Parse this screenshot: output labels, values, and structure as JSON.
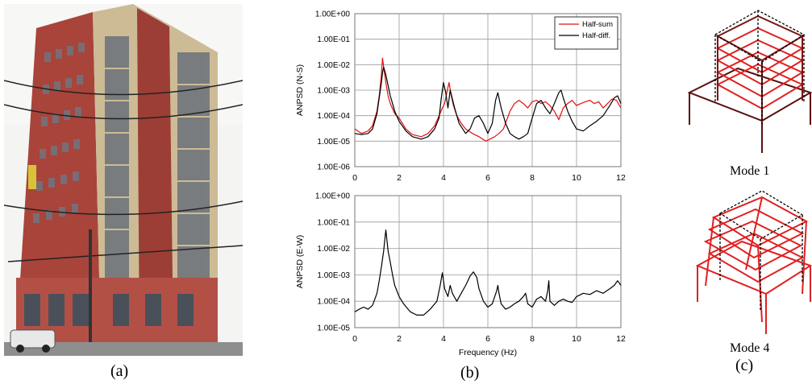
{
  "panels": {
    "a": {
      "label": "(a)"
    },
    "b": {
      "label": "(b)"
    },
    "c": {
      "label": "(c)",
      "modes": [
        "Mode 1",
        "Mode 4"
      ]
    }
  },
  "colors": {
    "half_sum": "#e01010",
    "half_diff": "#000000",
    "building_brick": "#a8443a",
    "building_stone": "#cdbb96",
    "mode_red": "#e02020",
    "mode_dark": "#5a1010"
  },
  "chart_data": [
    {
      "type": "line",
      "title": "",
      "xlabel": "",
      "ylabel": "ANPSD (N-S)",
      "xlim": [
        0,
        12
      ],
      "ylim": [
        1e-06,
        1
      ],
      "yscale": "log",
      "grid": true,
      "legend": "top-right",
      "x_ticks": [
        "0",
        "2",
        "4",
        "6",
        "8",
        "10",
        "12"
      ],
      "y_ticks": [
        "1.00E-06",
        "1.00E-05",
        "1.00E-04",
        "1.00E-03",
        "1.00E-02",
        "1.00E-01",
        "1.00E+00"
      ],
      "series": [
        {
          "name": "Half-sum",
          "color": "#e01010",
          "x": [
            0.0,
            0.3,
            0.6,
            0.8,
            1.0,
            1.1,
            1.2,
            1.25,
            1.3,
            1.4,
            1.5,
            1.6,
            1.8,
            2.0,
            2.3,
            2.6,
            3.0,
            3.3,
            3.6,
            3.8,
            3.95,
            4.05,
            4.15,
            4.25,
            4.35,
            4.45,
            4.6,
            4.8,
            5.0,
            5.3,
            5.6,
            5.9,
            6.1,
            6.3,
            6.5,
            6.7,
            7.0,
            7.2,
            7.4,
            7.6,
            7.8,
            8.0,
            8.2,
            8.4,
            8.6,
            8.8,
            9.0,
            9.2,
            9.4,
            9.6,
            9.8,
            10.0,
            10.2,
            10.4,
            10.6,
            10.8,
            11.0,
            11.2,
            11.4,
            11.6,
            11.8,
            12.0
          ],
          "y": [
            3e-05,
            2e-05,
            2.5e-05,
            4e-05,
            0.00015,
            0.0006,
            0.004,
            0.018,
            0.008,
            0.002,
            0.0006,
            0.0003,
            0.00012,
            8e-05,
            3e-05,
            1.8e-05,
            1.5e-05,
            2e-05,
            4e-05,
            0.0001,
            0.0002,
            0.0003,
            0.0008,
            0.002,
            0.0006,
            0.00025,
            0.0001,
            5e-05,
            3e-05,
            2e-05,
            1.5e-05,
            1e-05,
            1.2e-05,
            1.5e-05,
            2e-05,
            3e-05,
            0.00015,
            0.0003,
            0.0004,
            0.0003,
            0.0002,
            0.00035,
            0.0004,
            0.0003,
            0.00035,
            0.00025,
            0.00015,
            7e-05,
            0.0002,
            0.0003,
            0.0004,
            0.00025,
            0.0003,
            0.00035,
            0.0004,
            0.0003,
            0.00035,
            0.0002,
            0.0003,
            0.00045,
            0.0004,
            0.0002
          ]
        },
        {
          "name": "Half-diff.",
          "color": "#000000",
          "x": [
            0.0,
            0.3,
            0.6,
            0.8,
            1.0,
            1.1,
            1.2,
            1.25,
            1.3,
            1.4,
            1.5,
            1.6,
            1.7,
            1.8,
            2.0,
            2.3,
            2.6,
            3.0,
            3.3,
            3.6,
            3.8,
            3.9,
            4.0,
            4.1,
            4.2,
            4.3,
            4.5,
            4.7,
            5.0,
            5.2,
            5.4,
            5.6,
            5.8,
            6.0,
            6.2,
            6.35,
            6.45,
            6.6,
            6.8,
            7.0,
            7.2,
            7.4,
            7.6,
            7.8,
            8.0,
            8.2,
            8.4,
            8.6,
            8.8,
            9.0,
            9.2,
            9.3,
            9.4,
            9.6,
            9.8,
            10.0,
            10.3,
            10.6,
            10.9,
            11.2,
            11.5,
            11.7,
            11.85,
            12.0
          ],
          "y": [
            2e-05,
            1.8e-05,
            2e-05,
            3e-05,
            0.00012,
            0.0005,
            0.002,
            0.005,
            0.008,
            0.004,
            0.0015,
            0.0006,
            0.0003,
            0.00015,
            6e-05,
            2.5e-05,
            1.5e-05,
            1.2e-05,
            1.5e-05,
            3e-05,
            8e-05,
            0.0005,
            0.002,
            0.0008,
            0.0002,
            0.001,
            0.0002,
            5e-05,
            2e-05,
            3e-05,
            8e-05,
            0.0001,
            5e-05,
            2e-05,
            5e-05,
            0.0004,
            0.0008,
            0.0002,
            5e-05,
            2e-05,
            1.5e-05,
            1.2e-05,
            1.5e-05,
            2e-05,
            8e-05,
            0.0003,
            0.0004,
            0.0002,
            0.00012,
            0.0003,
            0.0008,
            0.001,
            0.0005,
            0.00015,
            6e-05,
            3e-05,
            2.5e-05,
            4e-05,
            6e-05,
            0.0001,
            0.00025,
            0.0005,
            0.0006,
            0.0003
          ]
        }
      ]
    },
    {
      "type": "line",
      "title": "",
      "xlabel": "Frequency (Hz)",
      "ylabel": "ANPSD (E-W)",
      "xlim": [
        0,
        12
      ],
      "ylim": [
        1e-05,
        1
      ],
      "yscale": "log",
      "grid": true,
      "x_ticks": [
        "0",
        "2",
        "4",
        "6",
        "8",
        "10",
        "12"
      ],
      "y_ticks": [
        "1.00E-05",
        "1.00E-04",
        "1.00E-03",
        "1.00E-02",
        "1.00E-01",
        "1.00E+00"
      ],
      "series": [
        {
          "color": "#000000",
          "x": [
            0.0,
            0.2,
            0.4,
            0.6,
            0.8,
            1.0,
            1.1,
            1.2,
            1.3,
            1.35,
            1.4,
            1.45,
            1.5,
            1.6,
            1.7,
            1.8,
            2.0,
            2.2,
            2.5,
            2.8,
            3.1,
            3.4,
            3.7,
            3.85,
            3.95,
            4.05,
            4.2,
            4.3,
            4.4,
            4.6,
            4.8,
            5.0,
            5.2,
            5.35,
            5.5,
            5.6,
            5.8,
            6.0,
            6.2,
            6.4,
            6.45,
            6.5,
            6.6,
            6.8,
            7.0,
            7.2,
            7.4,
            7.6,
            7.7,
            7.8,
            8.0,
            8.2,
            8.4,
            8.6,
            8.7,
            8.75,
            8.8,
            9.0,
            9.2,
            9.4,
            9.6,
            9.8,
            10.0,
            10.3,
            10.6,
            10.9,
            11.2,
            11.5,
            11.7,
            11.85,
            12.0
          ],
          "y": [
            4e-05,
            5e-05,
            6e-05,
            5e-05,
            7e-05,
            0.0002,
            0.0006,
            0.002,
            0.008,
            0.02,
            0.05,
            0.02,
            0.008,
            0.003,
            0.001,
            0.0004,
            0.00015,
            8e-05,
            4e-05,
            3e-05,
            3e-05,
            5e-05,
            0.0001,
            0.0004,
            0.0012,
            0.0003,
            0.00015,
            0.0004,
            0.0002,
            0.0001,
            0.0002,
            0.0004,
            0.0009,
            0.0013,
            0.0008,
            0.0003,
            0.0001,
            6e-05,
            8e-05,
            0.00025,
            0.0004,
            0.0002,
            8e-05,
            5e-05,
            6e-05,
            8e-05,
            0.0001,
            0.00015,
            0.0002,
            8e-05,
            6e-05,
            0.00012,
            0.00015,
            0.0001,
            0.00025,
            0.0006,
            0.0001,
            7e-05,
            0.0001,
            0.00012,
            0.0001,
            9e-05,
            0.00015,
            0.0002,
            0.00018,
            0.00025,
            0.0002,
            0.0003,
            0.0004,
            0.0006,
            0.0004
          ]
        }
      ]
    }
  ]
}
